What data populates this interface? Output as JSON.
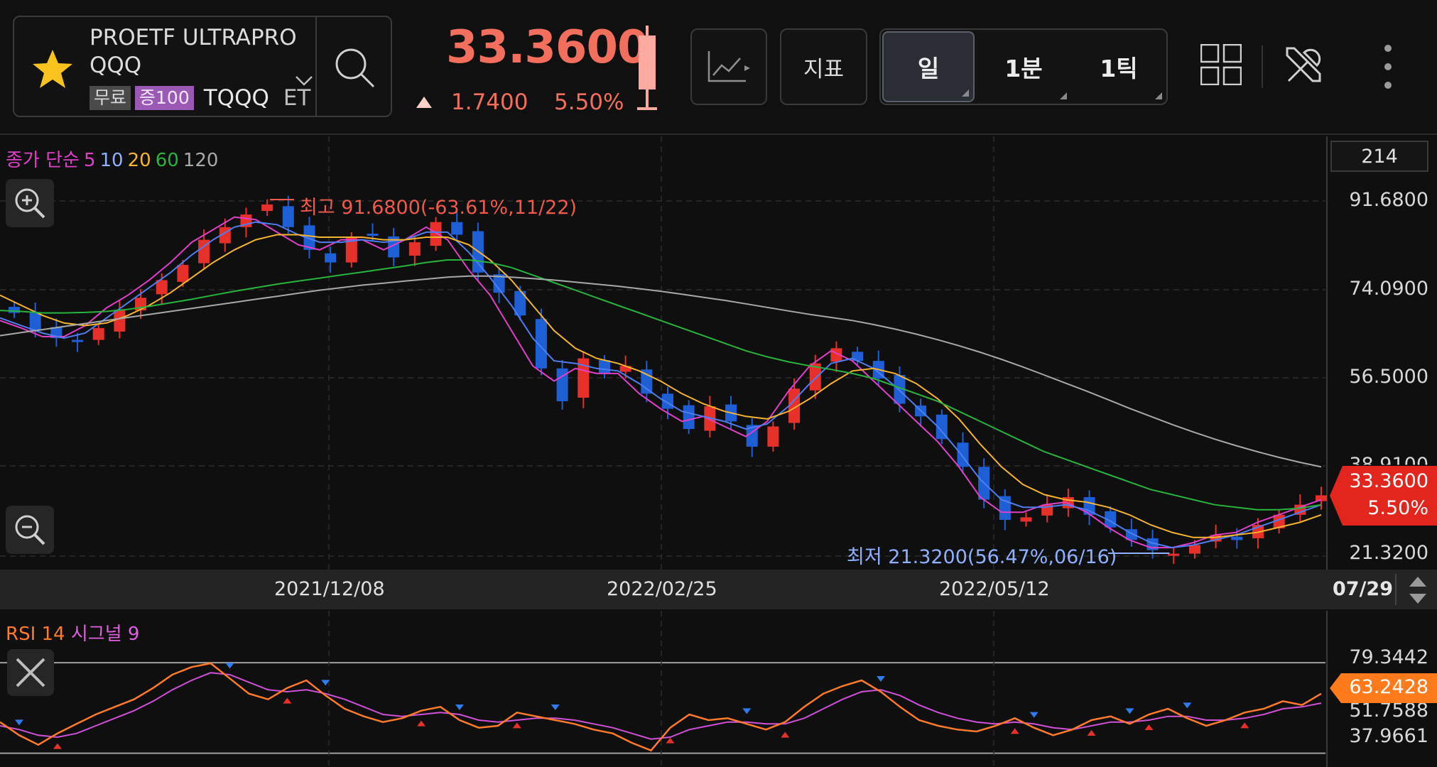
{
  "header": {
    "ticker_name": "PROETF ULTRAPRO QQQ",
    "badge_free": "무료",
    "badge_margin": "증100",
    "ticker_code": "TQQQ",
    "ticker_extra": "ET",
    "price": "33.3600",
    "change": "1.7400",
    "change_pct": "5.50%",
    "indicator_button": "지표",
    "periods": [
      "일",
      "1분",
      "1틱"
    ],
    "active_period": "일"
  },
  "colors": {
    "up": "#e8302a",
    "down": "#1f5fd6",
    "price_text": "#f16f5c",
    "ma5": "#e040c8",
    "ma10": "#4f7df0",
    "ma20": "#f5b430",
    "ma60": "#28b43c",
    "ma120": "#a8a8a8",
    "rsi": "#ff7a2a",
    "rsi_signal": "#d050d8"
  },
  "legend": {
    "prefix": "종가 단순",
    "ma": [
      "5",
      "10",
      "20",
      "60",
      "120"
    ]
  },
  "rsi_legend": {
    "label": "RSI 14",
    "signal": "시그널 9"
  },
  "axis": {
    "volume_box": "214",
    "y_ticks": [
      "91.6800",
      "74.0900",
      "56.5000",
      "38.9100",
      "21.3200"
    ],
    "x_ticks": [
      "2021/12/08",
      "2022/02/25",
      "2022/05/12"
    ],
    "x_end": "07/29",
    "rsi_ticks": [
      "79.3442",
      "51.7588",
      "37.9661"
    ],
    "rsi_current": "63.2428",
    "price_tag_price": "33.3600",
    "price_tag_pct": "5.50%"
  },
  "annotations": {
    "high": "최고 91.6800(-63.61%,11/22)",
    "low": "최저 21.3200(56.47%,06/16)"
  },
  "chart_data": {
    "type": "candlestick",
    "title": "",
    "ylim": [
      21.32,
      91.68
    ],
    "y_scale_labels": [
      91.68,
      74.09,
      56.5,
      38.91,
      21.32
    ],
    "x_tick_labels": [
      "2021/12/08",
      "2022/02/25",
      "2022/05/12",
      "07/29"
    ],
    "close_series": [
      69.5,
      66.0,
      64.5,
      63.8,
      66.5,
      70.0,
      72.5,
      76.0,
      79.0,
      84.0,
      86.5,
      89.0,
      91.0,
      86.5,
      82.0,
      79.5,
      84.5,
      85.0,
      80.5,
      83.5,
      87.5,
      85.0,
      77.5,
      73.5,
      69.0,
      58.5,
      52.0,
      60.5,
      57.5,
      59.0,
      53.5,
      50.5,
      46.5,
      51.0,
      48.0,
      43.0,
      47.0,
      54.5,
      59.5,
      62.5,
      60.0,
      56.5,
      51.5,
      49.0,
      44.5,
      39.0,
      32.5,
      28.5,
      29.0,
      31.5,
      33.0,
      29.5,
      27.0,
      24.5,
      22.5,
      21.8,
      23.5,
      25.5,
      24.5,
      27.5,
      29.5,
      31.5,
      33.36
    ],
    "moving_averages": [
      {
        "name": "5",
        "values": [
          68.0,
          66.5,
          64.8,
          64.8,
          67.0,
          70.5,
          73.0,
          76.0,
          79.5,
          83.5,
          86.0,
          88.5,
          88.0,
          85.5,
          83.0,
          82.0,
          84.0,
          84.0,
          82.0,
          84.0,
          86.5,
          84.0,
          78.0,
          73.0,
          66.0,
          59.0,
          56.0,
          58.5,
          57.5,
          57.5,
          53.5,
          50.5,
          48.0,
          49.0,
          47.0,
          45.0,
          48.0,
          54.0,
          59.0,
          62.0,
          60.0,
          56.0,
          52.0,
          48.0,
          44.0,
          39.0,
          33.0,
          30.0,
          30.0,
          31.5,
          32.0,
          30.0,
          27.0,
          24.5,
          23.0,
          23.0,
          24.0,
          25.5,
          26.0,
          28.0,
          29.5,
          31.0,
          32.5
        ]
      },
      {
        "name": "10",
        "values": [
          68.5,
          67.0,
          65.5,
          64.5,
          65.5,
          68.5,
          71.5,
          74.5,
          77.5,
          81.0,
          84.0,
          86.5,
          87.5,
          87.0,
          85.0,
          83.5,
          83.5,
          84.0,
          83.5,
          84.0,
          85.5,
          85.5,
          81.5,
          76.5,
          71.0,
          64.5,
          60.0,
          59.5,
          58.5,
          58.0,
          55.5,
          52.5,
          50.0,
          49.0,
          48.0,
          46.5,
          47.5,
          51.0,
          55.5,
          59.5,
          60.5,
          58.5,
          55.0,
          51.0,
          47.0,
          42.0,
          36.5,
          32.5,
          31.0,
          31.0,
          31.5,
          30.5,
          28.5,
          26.0,
          24.0,
          23.0,
          23.5,
          24.5,
          25.5,
          27.0,
          28.5,
          30.0,
          31.5
        ]
      },
      {
        "name": "20",
        "values": [
          73.0,
          71.0,
          69.0,
          67.5,
          67.0,
          67.5,
          69.0,
          71.0,
          73.5,
          76.5,
          79.5,
          82.0,
          84.0,
          85.0,
          85.0,
          84.5,
          84.5,
          84.5,
          84.0,
          84.0,
          84.5,
          84.5,
          83.0,
          80.0,
          76.0,
          71.0,
          66.0,
          62.5,
          60.5,
          59.5,
          58.0,
          56.0,
          53.5,
          51.5,
          50.0,
          49.0,
          48.5,
          50.0,
          52.5,
          55.5,
          58.0,
          58.5,
          57.5,
          55.5,
          52.5,
          48.5,
          43.5,
          39.0,
          35.5,
          33.5,
          32.5,
          32.0,
          31.0,
          29.5,
          27.5,
          26.0,
          25.0,
          25.0,
          25.5,
          26.0,
          27.0,
          28.0,
          29.5
        ]
      },
      {
        "name": "60",
        "values": [
          70.0,
          69.8,
          69.5,
          69.5,
          69.6,
          69.8,
          70.2,
          70.8,
          71.5,
          72.2,
          73.0,
          73.8,
          74.5,
          75.2,
          75.8,
          76.4,
          77.0,
          77.6,
          78.2,
          78.8,
          79.5,
          80.0,
          80.0,
          79.5,
          78.5,
          77.0,
          75.5,
          74.0,
          72.5,
          71.0,
          69.5,
          68.0,
          66.5,
          65.0,
          63.5,
          62.0,
          60.8,
          59.8,
          59.0,
          58.3,
          57.5,
          56.5,
          55.0,
          53.5,
          52.0,
          50.0,
          48.0,
          46.0,
          44.0,
          42.0,
          40.5,
          39.0,
          37.5,
          36.0,
          34.5,
          33.5,
          32.5,
          31.5,
          31.0,
          30.5,
          30.5,
          30.8,
          31.5
        ]
      },
      {
        "name": "120",
        "values": [
          65.0,
          65.6,
          66.2,
          66.8,
          67.4,
          68.0,
          68.6,
          69.2,
          69.8,
          70.4,
          71.0,
          71.6,
          72.2,
          72.8,
          73.4,
          74.0,
          74.5,
          75.0,
          75.4,
          75.8,
          76.2,
          76.6,
          76.8,
          76.8,
          76.6,
          76.3,
          76.0,
          75.6,
          75.2,
          74.8,
          74.3,
          73.8,
          73.2,
          72.6,
          72.0,
          71.3,
          70.6,
          69.9,
          69.2,
          68.6,
          68.0,
          67.2,
          66.3,
          65.3,
          64.2,
          63.0,
          61.7,
          60.3,
          58.8,
          57.2,
          55.6,
          54.0,
          52.3,
          50.6,
          49.0,
          47.4,
          45.9,
          44.5,
          43.2,
          42.0,
          40.9,
          39.9,
          39.0
        ]
      }
    ],
    "high": {
      "value": 91.68,
      "pct": "-63.61%",
      "date": "11/22"
    },
    "low": {
      "value": 21.32,
      "pct": "56.47%",
      "date": "06/16"
    },
    "rsi": {
      "ticks": [
        79.3442,
        51.7588,
        37.9661
      ],
      "current": 63.2428,
      "rsi_values": [
        48,
        41,
        36,
        42,
        47,
        52,
        56,
        60,
        66,
        73,
        77,
        79,
        71,
        63,
        60,
        66,
        70,
        62,
        55,
        51,
        48,
        50,
        54,
        56,
        49,
        45,
        46,
        53,
        51,
        49,
        47,
        44,
        42,
        37,
        33,
        45,
        52,
        49,
        50,
        47,
        44,
        48,
        56,
        63,
        67,
        70,
        64,
        56,
        49,
        46,
        44,
        43,
        46,
        50,
        45,
        41,
        44,
        49,
        51,
        47,
        52,
        55,
        50,
        46,
        49,
        53,
        55,
        59,
        57,
        63
      ],
      "signal_values": [
        46,
        44,
        41,
        40,
        42,
        46,
        50,
        54,
        59,
        65,
        70,
        74,
        73,
        69,
        65,
        64,
        65,
        63,
        60,
        56,
        52,
        51,
        52,
        53,
        52,
        49,
        48,
        49,
        50,
        50,
        49,
        47,
        45,
        42,
        39,
        40,
        44,
        46,
        48,
        48,
        47,
        47,
        50,
        55,
        60,
        64,
        65,
        62,
        57,
        53,
        50,
        48,
        47,
        48,
        47,
        45,
        44,
        46,
        48,
        48,
        49,
        51,
        51,
        49,
        49,
        50,
        52,
        55,
        56,
        58
      ]
    }
  }
}
